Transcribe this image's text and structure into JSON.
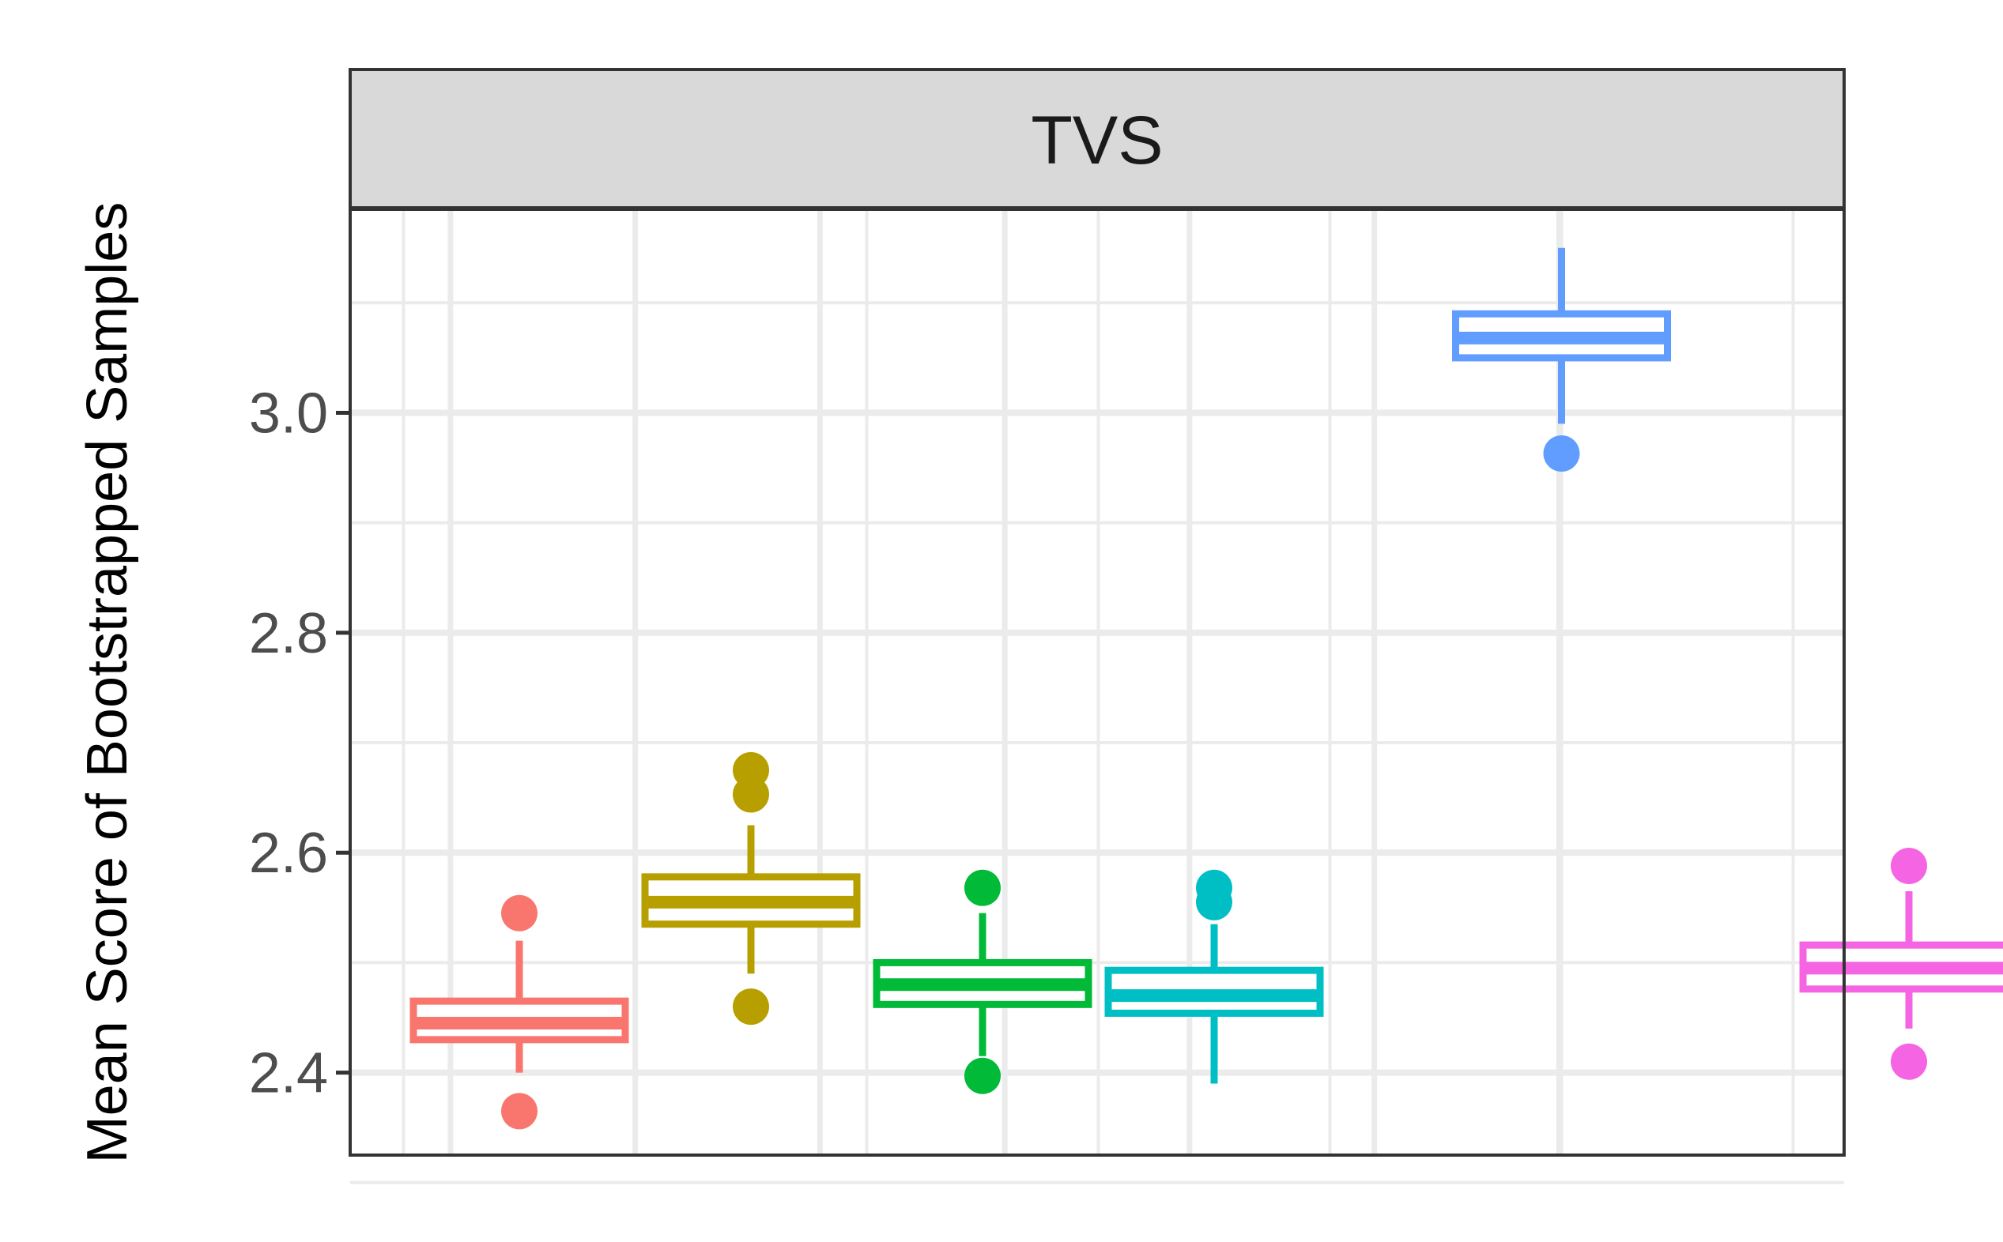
{
  "chart_data": {
    "type": "box",
    "panel_title": "TVS",
    "ylabel": "Mean Score of Bootstrapped Samples",
    "xlabel": "",
    "ylim": [
      2.325,
      3.185
    ],
    "yticks": [
      2.4,
      2.6,
      2.8,
      3.0
    ],
    "ytick_labels": [
      "2.4",
      "2.6",
      "2.8",
      "3.0"
    ],
    "grid": true,
    "legend": "none",
    "n_positions": 7,
    "series": [
      {
        "position": 1,
        "color": "#F8766D",
        "whisker_low": 2.4,
        "q1": 2.43,
        "median": 2.445,
        "q3": 2.465,
        "whisker_high": 2.52,
        "outliers": [
          2.365,
          2.545
        ]
      },
      {
        "position": 2,
        "color": "#B79F00",
        "whisker_low": 2.49,
        "q1": 2.535,
        "median": 2.555,
        "q3": 2.578,
        "whisker_high": 2.625,
        "outliers": [
          2.46,
          2.653,
          2.675
        ]
      },
      {
        "position": 3,
        "color": "#00BA38",
        "whisker_low": 2.415,
        "q1": 2.462,
        "median": 2.48,
        "q3": 2.5,
        "whisker_high": 2.545,
        "outliers": [
          2.397,
          2.568
        ]
      },
      {
        "position": 4,
        "color": "#00BFC4",
        "whisker_low": 2.39,
        "q1": 2.454,
        "median": 2.47,
        "q3": 2.493,
        "whisker_high": 2.535,
        "outliers": [
          2.555,
          2.568
        ]
      },
      {
        "position": 5.5,
        "color": "#619CFF",
        "whisker_low": 2.99,
        "q1": 3.05,
        "median": 3.068,
        "q3": 3.09,
        "whisker_high": 3.15,
        "outliers": [
          2.963
        ]
      },
      {
        "position": 7,
        "color": "#F564E3",
        "whisker_low": 2.44,
        "q1": 2.476,
        "median": 2.495,
        "q3": 2.516,
        "whisker_high": 2.565,
        "outliers": [
          2.41,
          2.588
        ]
      }
    ]
  }
}
